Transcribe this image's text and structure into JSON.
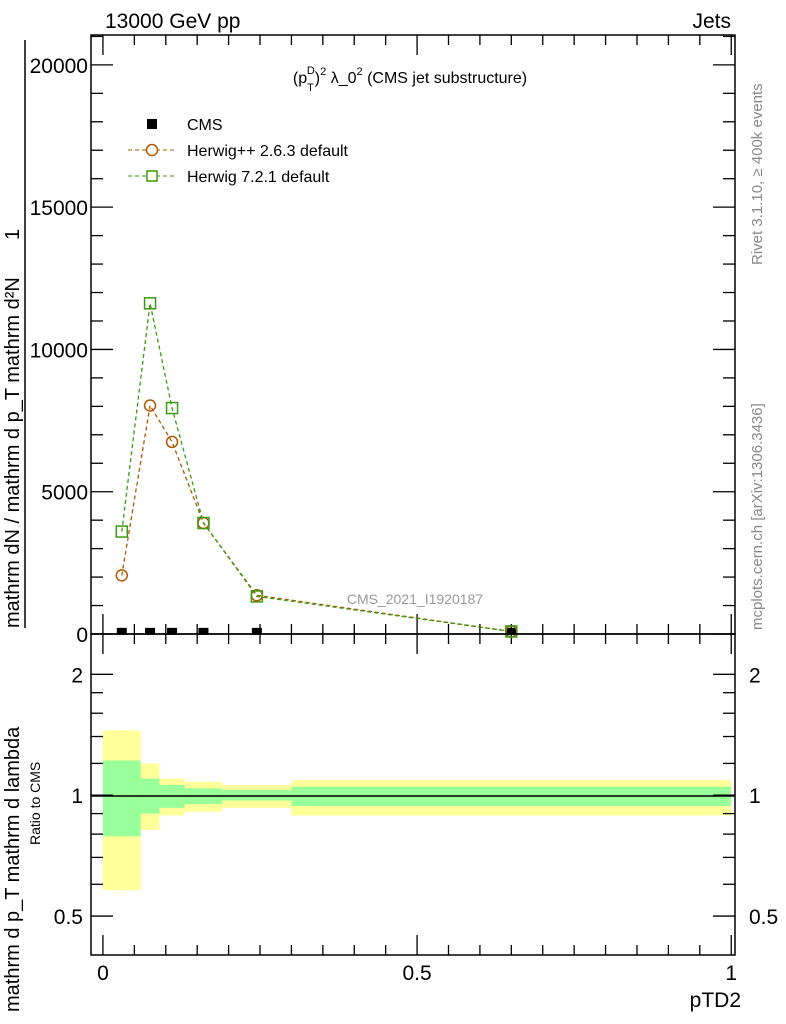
{
  "header": {
    "left": "13000 GeV pp",
    "right": "Jets"
  },
  "side_labels": {
    "rivet": "Rivet 3.1.10, ≥ 400k events",
    "mcplots": "mcplots.cern.ch [arXiv:1306.3436]"
  },
  "watermark": "CMS_2021_I1920187",
  "chart_data": [
    {
      "type": "line",
      "title": "(p_T^D)^2 λ_0^2 (CMS jet substructure)",
      "title_parts": {
        "a": "(p",
        "sub": "T",
        "sup": "D",
        "b": ")",
        "sq": "2",
        "c": " λ_0",
        "sq2": "2",
        "d": " (CMS jet substructure)"
      },
      "xlabel": "pTD2",
      "ylabel_parts": [
        "1",
        "mathrm dN / mathrm d p_T mathrm d²N",
        "mathrm d p_T mathrm d lambda"
      ],
      "xlim": [
        -0.019,
        1.006
      ],
      "ylim": [
        0,
        21050
      ],
      "yticks": [
        0,
        5000,
        10000,
        15000,
        20000
      ],
      "ytick_labels": [
        "0",
        "5000",
        "10000",
        "15000",
        "20000"
      ],
      "xticks": [
        0,
        0.5,
        1
      ],
      "xtick_labels": [
        "0",
        "0.5",
        "1"
      ],
      "legend_position": "top-left",
      "x": [
        0.03,
        0.075,
        0.11,
        0.16,
        0.245,
        0.65
      ],
      "series": [
        {
          "name": "CMS",
          "color": "#000000",
          "marker": "filled-square",
          "values": [
            40,
            40,
            40,
            40,
            40,
            40
          ]
        },
        {
          "name": "Herwig++ 2.6.3 default",
          "color": "#b35900",
          "marker": "open-circle",
          "values": [
            2060,
            8030,
            6750,
            3900,
            1360,
            90
          ]
        },
        {
          "name": "Herwig 7.2.1 default",
          "color": "#3a9a10",
          "marker": "open-square",
          "values": [
            3600,
            11620,
            7940,
            3900,
            1320,
            90
          ]
        }
      ]
    },
    {
      "type": "area",
      "ylabel": "Ratio to CMS",
      "yscale": "log",
      "ylim": [
        0.4,
        2.52
      ],
      "yticks": [
        0.5,
        1,
        2
      ],
      "ytick_labels": [
        "0.5",
        "1",
        "2"
      ],
      "bin_edges": [
        0,
        0.06,
        0.09,
        0.13,
        0.19,
        0.3,
        1.0
      ],
      "stat_band": {
        "color": "#99ff99",
        "upper": [
          1.22,
          1.1,
          1.06,
          1.04,
          1.03,
          1.05
        ],
        "lower": [
          0.79,
          0.9,
          0.93,
          0.95,
          0.97,
          0.94
        ]
      },
      "total_band": {
        "color": "#ffff99",
        "upper": [
          1.45,
          1.2,
          1.1,
          1.08,
          1.06,
          1.09
        ],
        "lower": [
          0.58,
          0.82,
          0.89,
          0.91,
          0.93,
          0.89
        ]
      }
    }
  ]
}
